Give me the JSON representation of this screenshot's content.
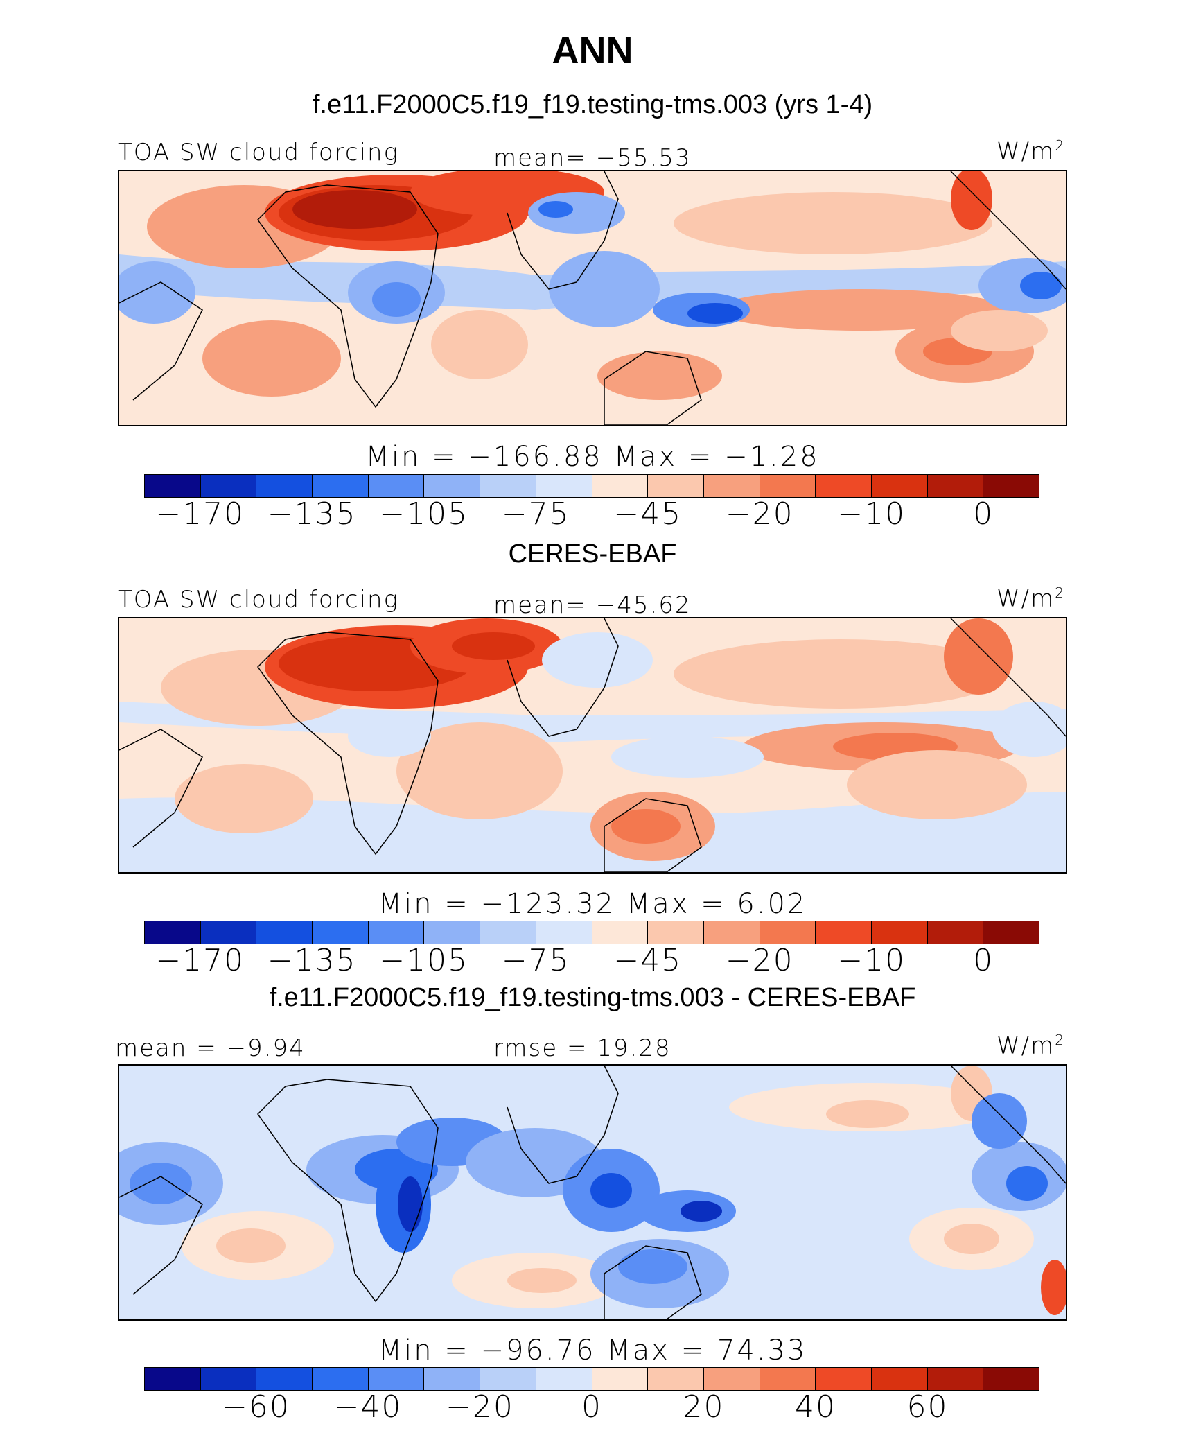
{
  "header": {
    "title": "ANN",
    "panel1_subtitle": "f.e11.F2000C5.f19_f19.testing-tms.003 (yrs 1-4)",
    "panel2_subtitle": "CERES-EBAF",
    "panel3_subtitle": "f.e11.F2000C5.f19_f19.testing-tms.003 - CERES-EBAF"
  },
  "panels": [
    {
      "left_label": "TOA SW cloud forcing",
      "center_label": "mean= −55.53",
      "units": "W/m",
      "units_sup": "2",
      "stats": "Min  =  −166.88  Max  =   −1.28",
      "ticks": [
        "−170",
        "−135",
        "−105",
        "−75",
        "−45",
        "−20",
        "−10",
        "0"
      ]
    },
    {
      "left_label": "TOA SW cloud forcing",
      "center_label": "mean= −45.62",
      "units": "W/m",
      "units_sup": "2",
      "stats": "Min  =  −123.32  Max  =    6.02",
      "ticks": [
        "−170",
        "−135",
        "−105",
        "−75",
        "−45",
        "−20",
        "−10",
        "0"
      ]
    },
    {
      "left_label": "mean =  −9.94",
      "center_label": "rmse =  19.28",
      "units": "W/m",
      "units_sup": "2",
      "stats": "Min  =  −96.76  Max  =   74.33",
      "ticks": [
        "−60",
        "−40",
        "−20",
        "0",
        "20",
        "40",
        "60"
      ]
    }
  ],
  "colors": {
    "palette": [
      "#08088a",
      "#0a2fbf",
      "#1450e0",
      "#2c6ef0",
      "#5a8ef5",
      "#8fb2f7",
      "#b9d0f8",
      "#d9e6fb",
      "#fde7d8",
      "#fbc8ae",
      "#f7a07e",
      "#f3784f",
      "#ee4a26",
      "#d93210",
      "#b21c0a",
      "#8a0a05"
    ]
  },
  "chart_data": [
    {
      "type": "heatmap",
      "title": "TOA SW cloud forcing",
      "subtitle": "f.e11.F2000C5.f19_f19.testing-tms.003 (yrs 1-4)",
      "units": "W/m2",
      "mean": -55.53,
      "min": -166.88,
      "max": -1.28,
      "colorbar_ticks": [
        -170,
        -135,
        -105,
        -75,
        -45,
        -20,
        -10,
        0
      ]
    },
    {
      "type": "heatmap",
      "title": "TOA SW cloud forcing",
      "subtitle": "CERES-EBAF",
      "units": "W/m2",
      "mean": -45.62,
      "min": -123.32,
      "max": 6.02,
      "colorbar_ticks": [
        -170,
        -135,
        -105,
        -75,
        -45,
        -20,
        -10,
        0
      ]
    },
    {
      "type": "heatmap",
      "subtitle": "f.e11.F2000C5.f19_f19.testing-tms.003 - CERES-EBAF",
      "units": "W/m2",
      "mean": -9.94,
      "rmse": 19.28,
      "min": -96.76,
      "max": 74.33,
      "colorbar_ticks": [
        -60,
        -40,
        -20,
        0,
        20,
        40,
        60
      ]
    }
  ]
}
